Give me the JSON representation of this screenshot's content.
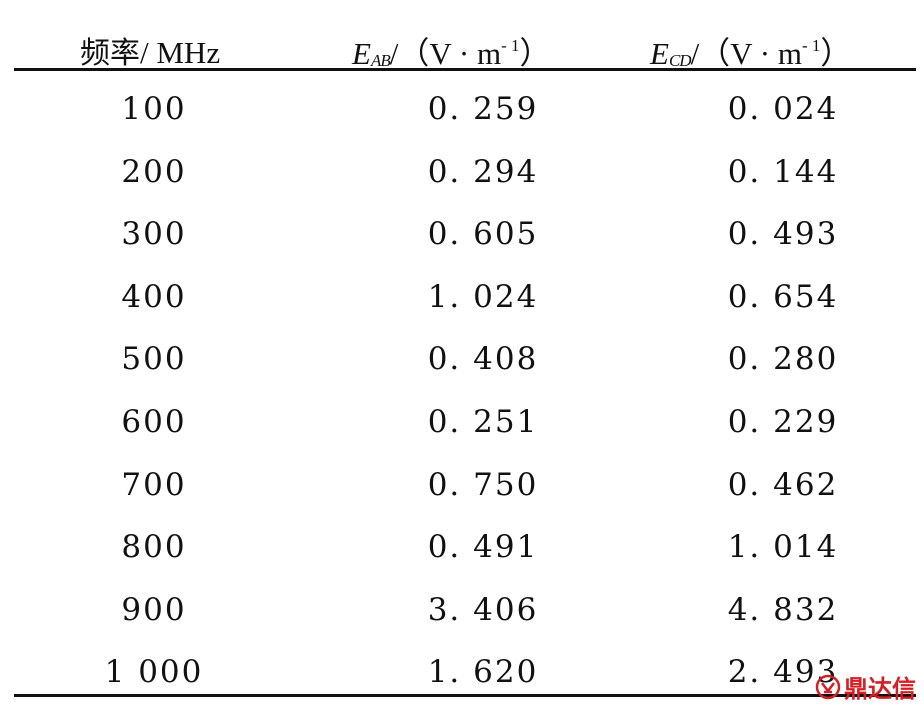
{
  "table": {
    "headers": {
      "freq": {
        "label": "频率",
        "unit": "/ MHz"
      },
      "e_ab": {
        "symbol": "E",
        "subscript": "AB",
        "unit_prefix": "/（V · m",
        "unit_sup": "- 1",
        "unit_suffix": "）"
      },
      "e_cd": {
        "symbol": "E",
        "subscript": "CD",
        "unit_prefix": "/（V · m",
        "unit_sup": "- 1",
        "unit_suffix": "）"
      }
    },
    "rows": [
      {
        "freq": "100",
        "e_ab": "0. 259",
        "e_cd": "0. 024"
      },
      {
        "freq": "200",
        "e_ab": "0. 294",
        "e_cd": "0. 144"
      },
      {
        "freq": "300",
        "e_ab": "0. 605",
        "e_cd": "0. 493"
      },
      {
        "freq": "400",
        "e_ab": "1. 024",
        "e_cd": "0. 654"
      },
      {
        "freq": "500",
        "e_ab": "0. 408",
        "e_cd": "0. 280"
      },
      {
        "freq": "600",
        "e_ab": "0. 251",
        "e_cd": "0. 229"
      },
      {
        "freq": "700",
        "e_ab": "0. 750",
        "e_cd": "0. 462"
      },
      {
        "freq": "800",
        "e_ab": "0. 491",
        "e_cd": "1. 014"
      },
      {
        "freq": "900",
        "e_ab": "3. 406",
        "e_cd": "4. 832"
      },
      {
        "freq": "1 000",
        "e_ab": "1. 620",
        "e_cd": "2. 493"
      }
    ]
  },
  "watermark": {
    "text": "鼎达信",
    "icon": "dingdaxin-logo-icon",
    "color": "#d31f26"
  }
}
